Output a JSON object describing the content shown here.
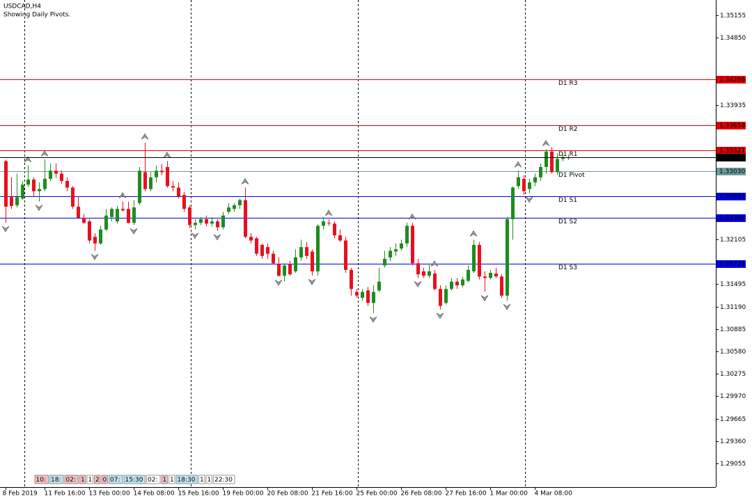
{
  "chart_data": {
    "type": "candlestick",
    "title": "USDCAD,H4",
    "subtitle": "Showing Daily Pivots.",
    "ylim": [
      1.28734,
      1.35363
    ],
    "yticks": [
      1.35155,
      {
        "value": 1.3485,
        "label": "1.34850"
      },
      1.33935,
      1.32105,
      1.31495,
      {
        "value": 1.3119,
        "label": "1.31190"
      },
      1.30885,
      {
        "value": 1.3058,
        "label": "1.30580"
      },
      1.30275,
      {
        "value": 1.2997,
        "label": "1.29970"
      },
      1.29665,
      {
        "value": 1.2936,
        "label": "1.29360"
      },
      1.29055
    ],
    "bull_color": "#1e8c1e",
    "bear_color": "#e8101e",
    "categories": [
      "8 Feb 2019",
      null,
      null,
      null,
      null,
      null,
      null,
      "11 Feb 16:00",
      null,
      null,
      null,
      null,
      null,
      null,
      null,
      "13 Feb 00:00",
      null,
      null,
      null,
      null,
      null,
      null,
      null,
      "14 Feb 08:00",
      null,
      null,
      null,
      null,
      null,
      null,
      null,
      "15 Feb 16:00",
      null,
      null,
      null,
      null,
      null,
      null,
      null,
      "19 Feb 00:00",
      null,
      null,
      null,
      null,
      null,
      null,
      null,
      "20 Feb 08:00",
      null,
      null,
      null,
      null,
      null,
      null,
      null,
      "21 Feb 16:00",
      null,
      null,
      null,
      null,
      null,
      null,
      null,
      "25 Feb 00:00",
      null,
      null,
      null,
      null,
      null,
      null,
      null,
      "26 Feb 08:00",
      null,
      null,
      null,
      null,
      null,
      null,
      null,
      "27 Feb 16:00",
      null,
      null,
      null,
      null,
      null,
      null,
      null,
      "1 Mar 00:00",
      null,
      null,
      null,
      null,
      null,
      null,
      null,
      "4 Mar 08:00",
      null,
      null,
      null,
      null,
      null,
      null
    ],
    "ohlc": [
      [
        1.3317,
        1.3319,
        1.3233,
        1.3255
      ],
      [
        1.3268,
        1.3295,
        1.3252,
        1.3256
      ],
      [
        1.3257,
        1.33,
        1.3254,
        1.3268
      ],
      [
        1.3266,
        1.329,
        1.3264,
        1.3285
      ],
      [
        1.3285,
        1.3311,
        1.3282,
        1.3292
      ],
      [
        1.3292,
        1.3295,
        1.3269,
        1.3276
      ],
      [
        1.3276,
        1.3288,
        1.3262,
        1.3279
      ],
      [
        1.3279,
        1.3319,
        1.3276,
        1.3293
      ],
      [
        1.3293,
        1.3314,
        1.329,
        1.3304
      ],
      [
        1.3304,
        1.3314,
        1.3294,
        1.33
      ],
      [
        1.33,
        1.3304,
        1.3286,
        1.329
      ],
      [
        1.329,
        1.3295,
        1.3276,
        1.3281
      ],
      [
        1.3281,
        1.3283,
        1.3252,
        1.3255
      ],
      [
        1.3255,
        1.3269,
        1.324,
        1.324
      ],
      [
        1.324,
        1.3245,
        1.3232,
        1.3233
      ],
      [
        1.3235,
        1.3238,
        1.3205,
        1.3209
      ],
      [
        1.3214,
        1.3219,
        1.3195,
        1.3205
      ],
      [
        1.3205,
        1.3229,
        1.3203,
        1.3224
      ],
      [
        1.3224,
        1.3252,
        1.3222,
        1.3243
      ],
      [
        1.3241,
        1.3254,
        1.3235,
        1.3252
      ],
      [
        1.3235,
        1.3256,
        1.3232,
        1.3252
      ],
      [
        1.3252,
        1.3262,
        1.3248,
        1.325
      ],
      [
        1.3252,
        1.3262,
        1.3232,
        1.3233
      ],
      [
        1.3233,
        1.3264,
        1.323,
        1.3254
      ],
      [
        1.326,
        1.3309,
        1.3258,
        1.3304
      ],
      [
        1.3302,
        1.3342,
        1.3276,
        1.3279
      ],
      [
        1.3279,
        1.3302,
        1.3276,
        1.3295
      ],
      [
        1.3295,
        1.3311,
        1.3288,
        1.3304
      ],
      [
        1.3304,
        1.3313,
        1.3298,
        1.3302
      ],
      [
        1.3309,
        1.3317,
        1.3281,
        1.3283
      ],
      [
        1.3283,
        1.329,
        1.3276,
        1.3281
      ],
      [
        1.3281,
        1.3288,
        1.3266,
        1.3269
      ],
      [
        1.3271,
        1.3275,
        1.3248,
        1.3252
      ],
      [
        1.3254,
        1.3257,
        1.3226,
        1.323
      ],
      [
        1.323,
        1.3238,
        1.3224,
        1.3233
      ],
      [
        1.3233,
        1.3241,
        1.323,
        1.3238
      ],
      [
        1.3238,
        1.3243,
        1.3228,
        1.3232
      ],
      [
        1.3232,
        1.3241,
        1.3228,
        1.3235
      ],
      [
        1.3235,
        1.3238,
        1.3222,
        1.3227
      ],
      [
        1.3227,
        1.3248,
        1.3224,
        1.3243
      ],
      [
        1.3248,
        1.326,
        1.3245,
        1.3254
      ],
      [
        1.3252,
        1.326,
        1.3248,
        1.3257
      ],
      [
        1.3257,
        1.3266,
        1.3252,
        1.3264
      ],
      [
        1.3264,
        1.3281,
        1.3212,
        1.3214
      ],
      [
        1.3214,
        1.3219,
        1.3205,
        1.3209
      ],
      [
        1.3212,
        1.3214,
        1.3188,
        1.3191
      ],
      [
        1.3203,
        1.3205,
        1.3184,
        1.3188
      ],
      [
        1.32,
        1.3205,
        1.3184,
        1.3191
      ],
      [
        1.3191,
        1.3195,
        1.3177,
        1.3178
      ],
      [
        1.3177,
        1.3186,
        1.316,
        1.3161
      ],
      [
        1.3161,
        1.3178,
        1.3153,
        1.3175
      ],
      [
        1.3177,
        1.3181,
        1.3161,
        1.3163
      ],
      [
        1.3167,
        1.3197,
        1.3165,
        1.3186
      ],
      [
        1.3186,
        1.321,
        1.3181,
        1.32
      ],
      [
        1.32,
        1.3207,
        1.3184,
        1.3188
      ],
      [
        1.3194,
        1.3197,
        1.3161,
        1.3167
      ],
      [
        1.3167,
        1.3231,
        1.3161,
        1.3229
      ],
      [
        1.3229,
        1.3241,
        1.3224,
        1.3235
      ],
      [
        1.3233,
        1.3238,
        1.3229,
        1.3232
      ],
      [
        1.3232,
        1.3235,
        1.3212,
        1.3216
      ],
      [
        1.3216,
        1.3224,
        1.3207,
        1.3209
      ],
      [
        1.3209,
        1.3214,
        1.3165,
        1.3169
      ],
      [
        1.3169,
        1.3172,
        1.3134,
        1.3143
      ],
      [
        1.3139,
        1.3143,
        1.3131,
        1.3134
      ],
      [
        1.3131,
        1.3143,
        1.3127,
        1.3139
      ],
      [
        1.3141,
        1.3146,
        1.312,
        1.3124
      ],
      [
        1.3124,
        1.3148,
        1.311,
        1.3139
      ],
      [
        1.3141,
        1.3172,
        1.3139,
        1.3153
      ],
      [
        1.3175,
        1.3195,
        1.3172,
        1.3184
      ],
      [
        1.3186,
        1.32,
        1.3181,
        1.3195
      ],
      [
        1.3194,
        1.3205,
        1.3188,
        1.3197
      ],
      [
        1.3198,
        1.321,
        1.3195,
        1.3205
      ],
      [
        1.3205,
        1.3233,
        1.32,
        1.3229
      ],
      [
        1.3229,
        1.3233,
        1.3175,
        1.3178
      ],
      [
        1.3178,
        1.3184,
        1.3158,
        1.3163
      ],
      [
        1.3167,
        1.3172,
        1.3158,
        1.3161
      ],
      [
        1.3161,
        1.3176,
        1.3158,
        1.3167
      ],
      [
        1.3164,
        1.3169,
        1.3141,
        1.3143
      ],
      [
        1.3143,
        1.3148,
        1.3115,
        1.312
      ],
      [
        1.3124,
        1.3148,
        1.3122,
        1.3143
      ],
      [
        1.3143,
        1.3158,
        1.3141,
        1.3153
      ],
      [
        1.3153,
        1.3158,
        1.3143,
        1.3148
      ],
      [
        1.3148,
        1.316,
        1.3145,
        1.3156
      ],
      [
        1.3154,
        1.3175,
        1.3152,
        1.3169
      ],
      [
        1.3167,
        1.321,
        1.3165,
        1.3203
      ],
      [
        1.3203,
        1.3207,
        1.3156,
        1.316
      ],
      [
        1.316,
        1.3167,
        1.3139,
        1.3158
      ],
      [
        1.3158,
        1.3169,
        1.3156,
        1.3165
      ],
      [
        1.3164,
        1.3172,
        1.3158,
        1.316
      ],
      [
        1.316,
        1.3163,
        1.3131,
        1.3134
      ],
      [
        1.3134,
        1.3241,
        1.3127,
        1.3238
      ],
      [
        1.3238,
        1.3283,
        1.321,
        1.3281
      ],
      [
        1.3283,
        1.3304,
        1.3279,
        1.3295
      ],
      [
        1.3293,
        1.3298,
        1.3271,
        1.3276
      ],
      [
        1.3279,
        1.3293,
        1.3273,
        1.3288
      ],
      [
        1.3288,
        1.33,
        1.3283,
        1.3295
      ],
      [
        1.3295,
        1.3314,
        1.329,
        1.3309
      ],
      [
        1.3309,
        1.3333,
        1.33,
        1.333
      ],
      [
        1.333,
        1.3336,
        1.33,
        1.3302
      ],
      [
        1.3302,
        1.3328,
        1.3298,
        1.332
      ],
      [
        1.332,
        1.3326,
        1.3317,
        1.3322
      ],
      [
        1.3322,
        1.3326,
        1.3319,
        1.3322
      ]
    ],
    "fractals_up": [
      4,
      7,
      21,
      25,
      29,
      43,
      58,
      73,
      77,
      84,
      92,
      97
    ],
    "fractals_down": [
      0,
      6,
      16,
      23,
      34,
      38,
      49,
      55,
      66,
      74,
      78,
      86,
      90,
      94
    ],
    "levels": [
      {
        "label": "D1 R3",
        "value": 1.34286,
        "color": "#e00000"
      },
      {
        "label": "D1 R2",
        "value": 1.33658,
        "color": "#e00000"
      },
      {
        "label": "D1 R1",
        "value": 1.33321,
        "color": "#e00000"
      },
      {
        "label": "D1 Pivot",
        "value": 1.3303,
        "value_label": "1.33030",
        "color": "#6f9a9a"
      },
      {
        "label": "D1 S1",
        "value": 1.32693,
        "color": "#0000e0"
      },
      {
        "label": "D1 S2",
        "value": 1.32402,
        "color": "#0000e0"
      },
      {
        "label": "D1 S3",
        "value": 1.31774,
        "color": "#0000e0"
      }
    ],
    "current_price": {
      "value": 1.33223,
      "color": "#000000"
    },
    "session_labels": [
      {
        "text": "10:",
        "bg": "#f4c0c0"
      },
      {
        "text": "18:",
        "bg": "#c0e4f0"
      },
      {
        "text": "02:",
        "bg": "#f4c0c0"
      },
      {
        "text": "1",
        "bg": "#f4c0c0"
      },
      {
        "text": "1",
        "bg": "#ffffff"
      },
      {
        "text": "2",
        "bg": "#f4c0c0"
      },
      {
        "text": "0",
        "bg": "#f4c0c0"
      },
      {
        "text": "07:",
        "bg": "#c0e4f0"
      },
      {
        "text": "15:30",
        "bg": "#c0e4f0"
      },
      {
        "text": "02:",
        "bg": "#ffffff"
      },
      {
        "text": "1",
        "bg": "#f4c0c0"
      },
      {
        "text": "1",
        "bg": "#ffffff"
      },
      {
        "text": "18:30",
        "bg": "#c0e4f0"
      },
      {
        "text": "1",
        "bg": "#ffffff"
      },
      {
        "text": "1",
        "bg": "#ffffff"
      },
      {
        "text": "22:30",
        "bg": "#ffffff"
      }
    ]
  }
}
